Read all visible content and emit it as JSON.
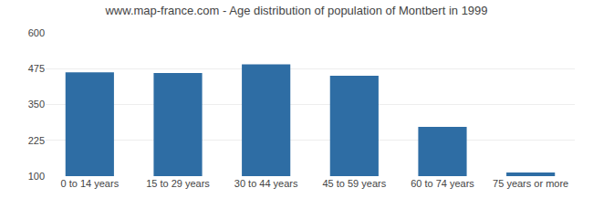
{
  "chart_data": {
    "type": "bar",
    "title": "www.map-france.com - Age distribution of population of Montbert in 1999",
    "categories": [
      "0 to 14 years",
      "15 to 29 years",
      "30 to 44 years",
      "45 to 59 years",
      "60 to 74 years",
      "75 years or more"
    ],
    "values": [
      462,
      460,
      490,
      450,
      272,
      113
    ],
    "color": "#2e6da4",
    "ylim": [
      100,
      600
    ],
    "yticks": [
      100,
      225,
      350,
      475,
      600
    ],
    "grid": true
  }
}
